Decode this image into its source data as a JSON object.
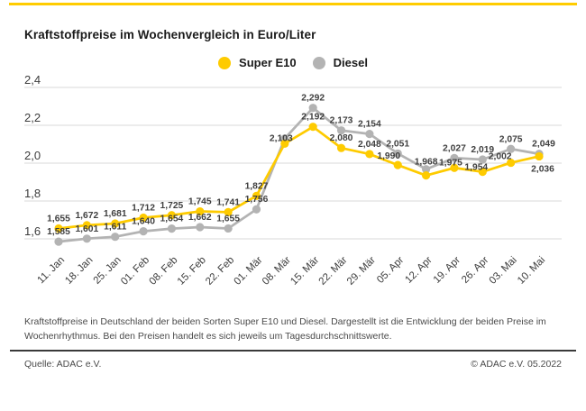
{
  "header": {
    "title": "Kraftstoffpreise im Wochenvergleich in Euro/Liter",
    "top_rule_color": "#FFCC00"
  },
  "legend": {
    "items": [
      {
        "label": "Super E10",
        "color": "#FECB00"
      },
      {
        "label": "Diesel",
        "color": "#B3B3B3"
      }
    ]
  },
  "chart_data": {
    "type": "line",
    "title": "Kraftstoffpreise im Wochenvergleich in Euro/Liter",
    "ylabel": "Euro/Liter",
    "xlabel": "",
    "grid": true,
    "legend_position": "top-center",
    "ylim": [
      1.6,
      2.4
    ],
    "yticks": [
      {
        "value": 2.4,
        "label": "2,4"
      },
      {
        "value": 2.2,
        "label": "2,2"
      },
      {
        "value": 2.0,
        "label": "2,0"
      },
      {
        "value": 1.8,
        "label": "1,8"
      },
      {
        "value": 1.6,
        "label": "1,6"
      }
    ],
    "categories": [
      "11. Jan",
      "18. Jan",
      "25. Jan",
      "01. Feb",
      "08. Feb",
      "15. Feb",
      "22. Feb",
      "01. Mär",
      "08. Mär",
      "15. Mär",
      "22. Mär",
      "29. Mär",
      "05. Apr",
      "12. Apr",
      "19. Apr",
      "26. Apr",
      "03. Mai",
      "10. Mai"
    ],
    "series": [
      {
        "name": "Diesel",
        "key": "diesel",
        "color": "#B3B3B3",
        "values": [
          1.585,
          1.601,
          1.611,
          1.64,
          1.654,
          1.662,
          1.655,
          1.756,
          2.13,
          2.292,
          2.173,
          2.154,
          2.051,
          1.968,
          2.027,
          2.019,
          2.075,
          2.049
        ],
        "labels": [
          "1,585",
          "1,601",
          "1,611",
          "1,640",
          "1,654",
          "1,662",
          "1,655",
          "1,756",
          null,
          "2,292",
          "2,173",
          "2,154",
          "2,051",
          "1,968",
          "2,027",
          "2,019",
          "2,075",
          "2,049"
        ]
      },
      {
        "name": "Super E10",
        "key": "super_e10",
        "color": "#FECB00",
        "values": [
          1.655,
          1.672,
          1.681,
          1.712,
          1.725,
          1.745,
          1.741,
          1.827,
          2.103,
          2.192,
          2.08,
          2.048,
          1.99,
          1.935,
          1.975,
          1.954,
          2.002,
          2.036
        ],
        "labels": [
          "1,655",
          "1,672",
          "1,681",
          "1,712",
          "1,725",
          "1,745",
          "1,741",
          "1,827",
          "2,103",
          "2,192",
          "2,080",
          "2,048",
          "1,990",
          null,
          "1,975",
          "1,954",
          "2,002",
          "2,036"
        ]
      }
    ]
  },
  "footer": {
    "description": "Kraftstoffpreise in Deutschland der beiden Sorten Super E10 und Diesel. Dargestellt ist die Entwicklung der beiden Preise im Wochenrhythmus. Bei den Preisen handelt es sich jeweils um Tagesdurchschnittswerte."
  },
  "source": {
    "left": "Quelle: ADAC e.V.",
    "right": "© ADAC e.V. 05.2022"
  }
}
